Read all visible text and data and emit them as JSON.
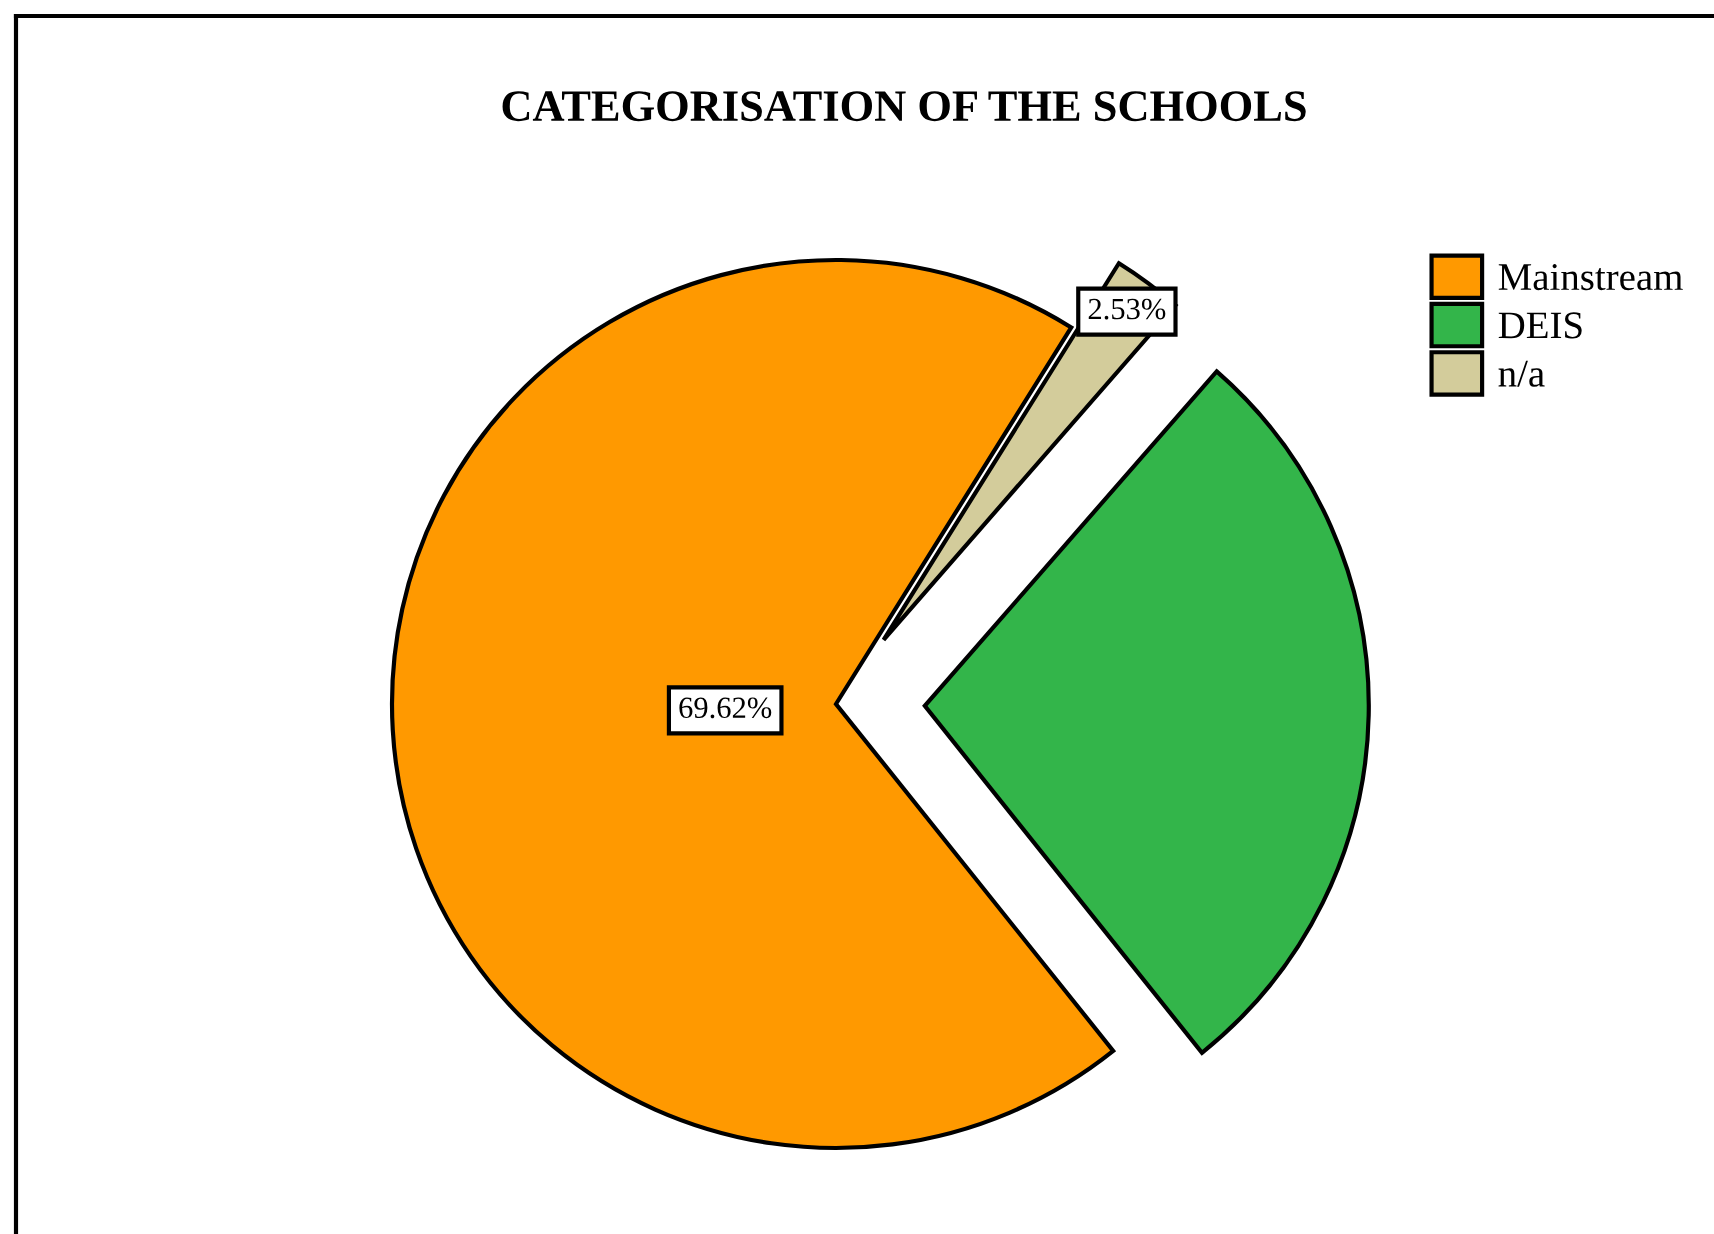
{
  "chart_data": {
    "type": "pie",
    "title": "CATEGORISATION OF THE SCHOOLS",
    "categories": [
      "Mainstream",
      "DEIS",
      "n/a"
    ],
    "values": [
      69.62,
      27.85,
      2.53
    ],
    "colors": [
      "#ff9900",
      "#33b54a",
      "#d3cc9b"
    ],
    "value_labels": [
      "69.62%",
      null,
      "2.53%"
    ],
    "legend": "top right"
  }
}
